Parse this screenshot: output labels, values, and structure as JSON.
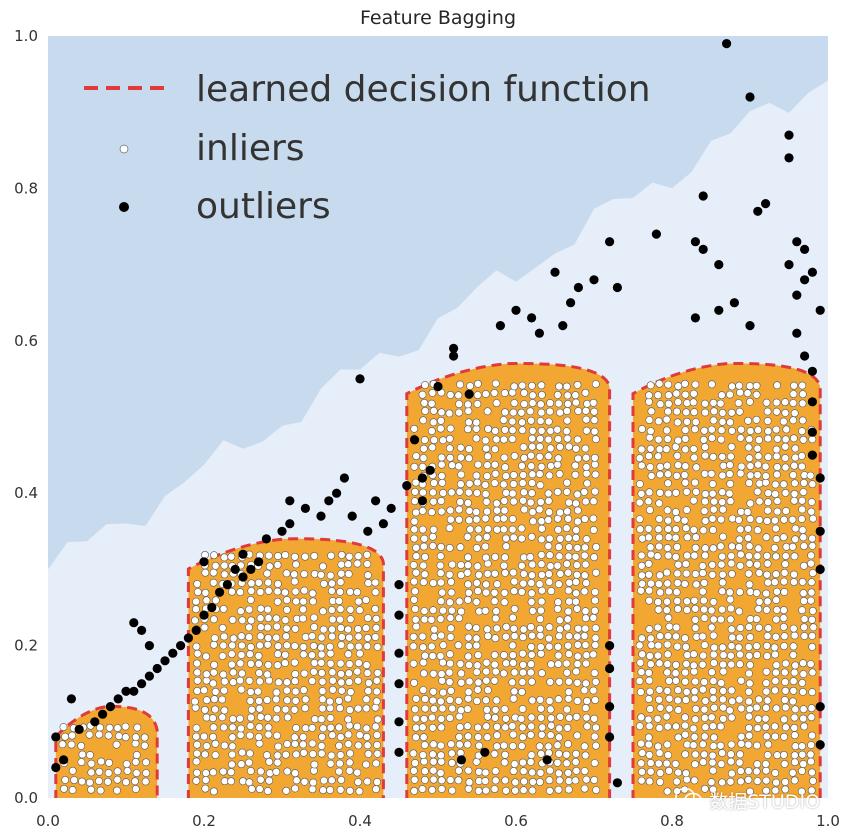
{
  "chart_data": {
    "type": "scatter",
    "title": "Feature Bagging",
    "xlabel": "",
    "ylabel": "",
    "xlim": [
      0.0,
      1.0
    ],
    "ylim": [
      0.0,
      1.0
    ],
    "x_ticks": [
      "0.0",
      "0.2",
      "0.4",
      "0.6",
      "0.8",
      "1.0"
    ],
    "y_ticks": [
      "0.0",
      "0.2",
      "0.4",
      "0.6",
      "0.8",
      "1.0"
    ],
    "grid": false,
    "legend_position": "top-left",
    "legend": [
      {
        "label": "learned decision function",
        "style": "dashed-line",
        "color": "#e03a3a"
      },
      {
        "label": "inliers",
        "style": "marker",
        "color": "#ffffff"
      },
      {
        "label": "outliers",
        "style": "marker",
        "color": "#000000"
      }
    ],
    "background_colormap": [
      "#1b4a87",
      "#2e68ac",
      "#4f8cc4",
      "#88b8da",
      "#c8dbee",
      "#e6eefa"
    ],
    "inlier_region_color": "#f2a733",
    "decision_boundary_color": "#e03a3a",
    "inlier_clusters": [
      {
        "x_min": 0.01,
        "x_max": 0.14,
        "y_top": 0.12
      },
      {
        "x_min": 0.18,
        "x_max": 0.43,
        "y_top": 0.34
      },
      {
        "x_min": 0.46,
        "x_max": 0.72,
        "y_top": 0.57
      },
      {
        "x_min": 0.75,
        "x_max": 0.99,
        "y_top": 0.57
      }
    ],
    "outliers": [
      [
        0.87,
        0.99
      ],
      [
        0.9,
        0.92
      ],
      [
        0.95,
        0.87
      ],
      [
        0.95,
        0.84
      ],
      [
        0.84,
        0.79
      ],
      [
        0.92,
        0.78
      ],
      [
        0.91,
        0.77
      ],
      [
        0.78,
        0.74
      ],
      [
        0.83,
        0.73
      ],
      [
        0.96,
        0.73
      ],
      [
        0.97,
        0.72
      ],
      [
        0.72,
        0.73
      ],
      [
        0.84,
        0.72
      ],
      [
        0.86,
        0.7
      ],
      [
        0.95,
        0.7
      ],
      [
        0.98,
        0.69
      ],
      [
        0.97,
        0.68
      ],
      [
        0.65,
        0.69
      ],
      [
        0.7,
        0.68
      ],
      [
        0.73,
        0.67
      ],
      [
        0.68,
        0.67
      ],
      [
        0.67,
        0.65
      ],
      [
        0.96,
        0.66
      ],
      [
        0.88,
        0.65
      ],
      [
        0.86,
        0.64
      ],
      [
        0.83,
        0.63
      ],
      [
        0.9,
        0.62
      ],
      [
        0.99,
        0.64
      ],
      [
        0.62,
        0.63
      ],
      [
        0.66,
        0.62
      ],
      [
        0.6,
        0.64
      ],
      [
        0.63,
        0.61
      ],
      [
        0.96,
        0.61
      ],
      [
        0.58,
        0.62
      ],
      [
        0.97,
        0.58
      ],
      [
        0.98,
        0.56
      ],
      [
        0.52,
        0.59
      ],
      [
        0.52,
        0.58
      ],
      [
        0.4,
        0.55
      ],
      [
        0.5,
        0.54
      ],
      [
        0.54,
        0.53
      ],
      [
        0.98,
        0.52
      ],
      [
        0.47,
        0.47
      ],
      [
        0.49,
        0.43
      ],
      [
        0.48,
        0.42
      ],
      [
        0.46,
        0.41
      ],
      [
        0.42,
        0.39
      ],
      [
        0.44,
        0.38
      ],
      [
        0.48,
        0.39
      ],
      [
        0.43,
        0.36
      ],
      [
        0.41,
        0.35
      ],
      [
        0.39,
        0.37
      ],
      [
        0.37,
        0.4
      ],
      [
        0.36,
        0.39
      ],
      [
        0.35,
        0.37
      ],
      [
        0.33,
        0.38
      ],
      [
        0.31,
        0.36
      ],
      [
        0.3,
        0.35
      ],
      [
        0.28,
        0.34
      ],
      [
        0.27,
        0.31
      ],
      [
        0.26,
        0.3
      ],
      [
        0.25,
        0.29
      ],
      [
        0.24,
        0.3
      ],
      [
        0.23,
        0.28
      ],
      [
        0.22,
        0.27
      ],
      [
        0.21,
        0.25
      ],
      [
        0.2,
        0.24
      ],
      [
        0.19,
        0.22
      ],
      [
        0.2,
        0.31
      ],
      [
        0.17,
        0.2
      ],
      [
        0.18,
        0.21
      ],
      [
        0.16,
        0.19
      ],
      [
        0.15,
        0.18
      ],
      [
        0.14,
        0.17
      ],
      [
        0.13,
        0.16
      ],
      [
        0.12,
        0.15
      ],
      [
        0.11,
        0.14
      ],
      [
        0.1,
        0.14
      ],
      [
        0.09,
        0.13
      ],
      [
        0.08,
        0.12
      ],
      [
        0.07,
        0.11
      ],
      [
        0.06,
        0.1
      ],
      [
        0.04,
        0.09
      ],
      [
        0.03,
        0.13
      ],
      [
        0.12,
        0.22
      ],
      [
        0.11,
        0.23
      ],
      [
        0.13,
        0.2
      ],
      [
        0.02,
        0.05
      ],
      [
        0.01,
        0.08
      ],
      [
        0.01,
        0.04
      ],
      [
        0.45,
        0.28
      ],
      [
        0.45,
        0.24
      ],
      [
        0.45,
        0.19
      ],
      [
        0.45,
        0.15
      ],
      [
        0.45,
        0.1
      ],
      [
        0.45,
        0.06
      ],
      [
        0.72,
        0.2
      ],
      [
        0.72,
        0.17
      ],
      [
        0.72,
        0.12
      ],
      [
        0.72,
        0.08
      ],
      [
        0.73,
        0.02
      ],
      [
        0.99,
        0.35
      ],
      [
        0.99,
        0.3
      ],
      [
        0.99,
        0.12
      ],
      [
        0.99,
        0.07
      ],
      [
        0.56,
        0.06
      ],
      [
        0.53,
        0.05
      ],
      [
        0.64,
        0.05
      ],
      [
        0.38,
        0.42
      ],
      [
        0.31,
        0.39
      ],
      [
        0.25,
        0.32
      ],
      [
        0.98,
        0.45
      ],
      [
        0.98,
        0.48
      ],
      [
        0.99,
        0.42
      ]
    ]
  },
  "watermark": {
    "text": "数据STUDIO"
  }
}
